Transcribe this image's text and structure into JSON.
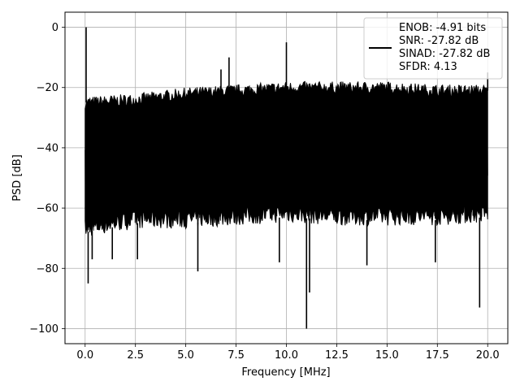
{
  "chart_data": {
    "type": "line",
    "title": "",
    "xlabel": "Frequency [MHz]",
    "ylabel": "PSD [dB]",
    "xlim": [
      -1.0,
      21.0
    ],
    "ylim": [
      -105,
      5
    ],
    "xticks": [
      0.0,
      2.5,
      5.0,
      7.5,
      10.0,
      12.5,
      15.0,
      17.5,
      20.0
    ],
    "xtick_labels": [
      "0.0",
      "2.5",
      "5.0",
      "7.5",
      "10.0",
      "12.5",
      "15.0",
      "17.5",
      "20.0"
    ],
    "yticks": [
      0,
      -20,
      -40,
      -60,
      -80,
      -100
    ],
    "ytick_labels": [
      "0",
      "−20",
      "−40",
      "−60",
      "−80",
      "−100"
    ],
    "grid": true,
    "legend_position": "top-right",
    "legend_lines": [
      "ENOB: -4.91 bits",
      "SNR: -27.82 dB",
      "SINAD: -27.82 dB",
      "SFDR: 4.13"
    ],
    "line_color": "#000000",
    "noise_floor": {
      "x_range": [
        0.0,
        20.0
      ],
      "upper_envelope": [
        [
          0.0,
          -25
        ],
        [
          2.5,
          -24
        ],
        [
          5.0,
          -22
        ],
        [
          7.5,
          -21
        ],
        [
          10.0,
          -20
        ],
        [
          12.5,
          -20
        ],
        [
          15.0,
          -20
        ],
        [
          17.5,
          -21
        ],
        [
          20.0,
          -21
        ]
      ],
      "lower_envelope": [
        [
          0.0,
          -68
        ],
        [
          2.5,
          -65
        ],
        [
          5.0,
          -65
        ],
        [
          7.5,
          -64
        ],
        [
          10.0,
          -63
        ],
        [
          12.5,
          -64
        ],
        [
          15.0,
          -64
        ],
        [
          17.5,
          -64
        ],
        [
          20.0,
          -63
        ]
      ]
    },
    "peaks": [
      {
        "x": 0.05,
        "y": 0
      },
      {
        "x": 7.15,
        "y": -10
      },
      {
        "x": 6.75,
        "y": -14
      },
      {
        "x": 10.0,
        "y": -5
      },
      {
        "x": 20.0,
        "y": -15
      }
    ],
    "dips": [
      {
        "x": 0.15,
        "y": -85
      },
      {
        "x": 0.35,
        "y": -77
      },
      {
        "x": 1.35,
        "y": -77
      },
      {
        "x": 2.6,
        "y": -77
      },
      {
        "x": 5.6,
        "y": -81
      },
      {
        "x": 9.65,
        "y": -78
      },
      {
        "x": 11.0,
        "y": -100
      },
      {
        "x": 11.15,
        "y": -88
      },
      {
        "x": 14.0,
        "y": -79
      },
      {
        "x": 17.4,
        "y": -78
      },
      {
        "x": 19.6,
        "y": -93
      }
    ]
  }
}
